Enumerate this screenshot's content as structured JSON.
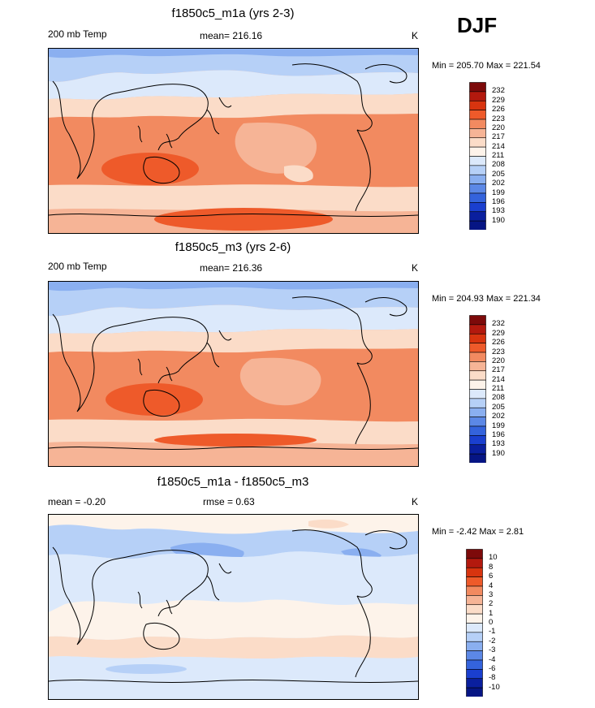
{
  "season": "DJF",
  "panels": [
    {
      "title": "f1850c5_m1a (yrs 2-3)",
      "left_label": "200 mb Temp",
      "center_label": "mean= 216.16",
      "units": "K",
      "minmax": "Min = 205.70 Max = 221.54",
      "colorbar": [
        "232",
        "229",
        "226",
        "223",
        "220",
        "217",
        "214",
        "211",
        "208",
        "205",
        "202",
        "199",
        "196",
        "193",
        "190"
      ]
    },
    {
      "title": "f1850c5_m3 (yrs 2-6)",
      "left_label": "200 mb Temp",
      "center_label": "mean= 216.36",
      "units": "K",
      "minmax": "Min = 204.93 Max = 221.34",
      "colorbar": [
        "232",
        "229",
        "226",
        "223",
        "220",
        "217",
        "214",
        "211",
        "208",
        "205",
        "202",
        "199",
        "196",
        "193",
        "190"
      ]
    },
    {
      "title": "f1850c5_m1a - f1850c5_m3",
      "left_label": "mean =  -0.20",
      "center_label": "rmse =   0.63",
      "units": "K",
      "minmax": "Min =  -2.42 Max =   2.81",
      "colorbar": [
        "10",
        "8",
        "6",
        "4",
        "3",
        "2",
        "1",
        "0",
        "-1",
        "-2",
        "-3",
        "-4",
        "-6",
        "-8",
        "-10"
      ]
    }
  ],
  "chart_data": [
    {
      "type": "heatmap",
      "title": "f1850c5_m1a (yrs 2-3)",
      "variable": "200 mb Temp",
      "mean": 216.16,
      "units": "K",
      "min": 205.7,
      "max": 221.54,
      "levels": [
        190,
        193,
        196,
        199,
        202,
        205,
        208,
        211,
        214,
        217,
        220,
        223,
        226,
        229,
        232
      ]
    },
    {
      "type": "heatmap",
      "title": "f1850c5_m3 (yrs 2-6)",
      "variable": "200 mb Temp",
      "mean": 216.36,
      "units": "K",
      "min": 204.93,
      "max": 221.34,
      "levels": [
        190,
        193,
        196,
        199,
        202,
        205,
        208,
        211,
        214,
        217,
        220,
        223,
        226,
        229,
        232
      ]
    },
    {
      "type": "heatmap",
      "title": "f1850c5_m1a - f1850c5_m3",
      "mean": -0.2,
      "rmse": 0.63,
      "units": "K",
      "min": -2.42,
      "max": 2.81,
      "levels": [
        -10,
        -8,
        -6,
        -4,
        -3,
        -2,
        -1,
        0,
        1,
        2,
        3,
        4,
        6,
        8,
        10
      ]
    }
  ],
  "colors": {
    "scale": [
      "#7d0a0a",
      "#b3190e",
      "#d8340f",
      "#ee5a2a",
      "#f28a60",
      "#f6b496",
      "#fbdcc8",
      "#fdf3ea",
      "#dce9fb",
      "#b6d0f7",
      "#8aaff0",
      "#5c88e6",
      "#3463dc",
      "#1a3fcf",
      "#0a1f9e",
      "#061584"
    ]
  }
}
